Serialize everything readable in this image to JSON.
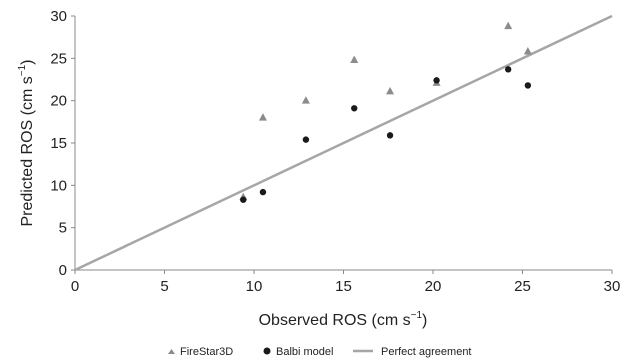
{
  "chart_data": {
    "type": "scatter",
    "xlabel": "Observed ROS (cm s",
    "xlabel_sup": "−1",
    "xlabel_end": ")",
    "ylabel": "Predicted ROS (cm s",
    "ylabel_sup": "−1",
    "ylabel_end": ")",
    "xlim": [
      0,
      30
    ],
    "ylim": [
      0,
      30
    ],
    "xticks": [
      "0",
      "5",
      "10",
      "15",
      "20",
      "25",
      "30"
    ],
    "yticks": [
      "0",
      "5",
      "10",
      "15",
      "20",
      "25",
      "30"
    ],
    "grid": false,
    "legend_position": "bottom",
    "series": [
      {
        "name": "FireStar3D",
        "marker": "triangle",
        "color": "#8c8c8c",
        "points": [
          [
            9.4,
            8.6
          ],
          [
            10.5,
            18.0
          ],
          [
            12.9,
            20.0
          ],
          [
            15.6,
            24.8
          ],
          [
            17.6,
            21.1
          ],
          [
            20.2,
            22.1
          ],
          [
            24.2,
            28.8
          ],
          [
            25.3,
            25.8
          ]
        ]
      },
      {
        "name": "Balbi model",
        "marker": "circle",
        "color": "#1a1a1a",
        "points": [
          [
            9.4,
            8.3
          ],
          [
            10.5,
            9.2
          ],
          [
            12.9,
            15.4
          ],
          [
            15.6,
            19.1
          ],
          [
            17.6,
            15.9
          ],
          [
            20.2,
            22.4
          ],
          [
            24.2,
            23.7
          ],
          [
            25.3,
            21.8
          ]
        ]
      },
      {
        "name": "Perfect agreement",
        "marker": "line",
        "color": "#a6a6a6",
        "points": [
          [
            0,
            0
          ],
          [
            30,
            30
          ]
        ]
      }
    ]
  }
}
